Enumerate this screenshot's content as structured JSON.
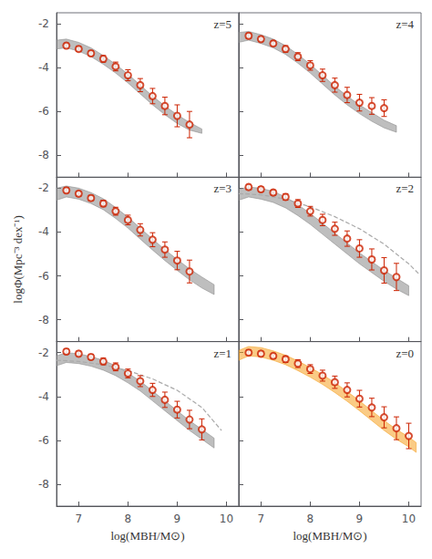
{
  "chart_data": [
    {
      "type": "scatter",
      "annotation": "z=5",
      "xlim": [
        6.55,
        10.25
      ],
      "ylim": [
        -9,
        -1.5
      ],
      "xticks": [
        7,
        8,
        9,
        10
      ],
      "yticks": [
        -8,
        -6,
        -4,
        -2
      ],
      "grid": false,
      "tick_labels": "y",
      "series": [
        {
          "type": "band",
          "color": "#888888",
          "x": [
            6.55,
            6.75,
            7.0,
            7.25,
            7.5,
            7.75,
            8.0,
            8.25,
            8.5,
            8.75,
            9.0,
            9.25,
            9.5
          ],
          "low": [
            -3.15,
            -3.1,
            -3.25,
            -3.5,
            -3.85,
            -4.25,
            -4.7,
            -5.2,
            -5.7,
            -6.15,
            -6.55,
            -6.85,
            -7.0
          ],
          "high": [
            -2.75,
            -2.7,
            -2.85,
            -3.1,
            -3.45,
            -3.85,
            -4.3,
            -4.8,
            -5.3,
            -5.75,
            -6.15,
            -6.5,
            -6.8
          ]
        },
        {
          "type": "scatter",
          "marker": "emptyCircle",
          "color": "#cc2200",
          "x": [
            6.75,
            7.0,
            7.25,
            7.5,
            7.75,
            8.0,
            8.25,
            8.5,
            8.75,
            9.0,
            9.25
          ],
          "values": [
            -3.0,
            -3.15,
            -3.35,
            -3.6,
            -3.95,
            -4.35,
            -4.8,
            -5.3,
            -5.75,
            -6.2,
            -6.6
          ],
          "yerr": [
            0.12,
            0.12,
            0.12,
            0.15,
            0.2,
            0.25,
            0.3,
            0.35,
            0.4,
            0.5,
            0.6
          ]
        }
      ]
    },
    {
      "type": "scatter",
      "annotation": "z=4",
      "xlim": [
        6.55,
        10.25
      ],
      "ylim": [
        -9,
        -1.5
      ],
      "xticks": [
        7,
        8,
        9,
        10
      ],
      "yticks": [
        -8,
        -6,
        -4,
        -2
      ],
      "grid": false,
      "tick_labels": false,
      "series": [
        {
          "type": "band",
          "color": "#888888",
          "x": [
            6.55,
            6.75,
            7.0,
            7.25,
            7.5,
            7.75,
            8.0,
            8.25,
            8.5,
            8.75,
            9.0,
            9.25,
            9.5,
            9.75
          ],
          "low": [
            -2.85,
            -2.75,
            -2.9,
            -3.1,
            -3.4,
            -3.8,
            -4.25,
            -4.75,
            -5.25,
            -5.7,
            -6.1,
            -6.45,
            -6.75,
            -6.95
          ],
          "high": [
            -2.4,
            -2.35,
            -2.5,
            -2.7,
            -3.0,
            -3.4,
            -3.85,
            -4.35,
            -4.85,
            -5.3,
            -5.7,
            -6.05,
            -6.4,
            -6.65
          ]
        },
        {
          "type": "scatter",
          "marker": "emptyCircle",
          "color": "#cc2200",
          "x": [
            6.75,
            7.0,
            7.25,
            7.5,
            7.75,
            8.0,
            8.25,
            8.5,
            8.75,
            9.0,
            9.25,
            9.5
          ],
          "values": [
            -2.55,
            -2.7,
            -2.9,
            -3.15,
            -3.5,
            -3.9,
            -4.35,
            -4.8,
            -5.25,
            -5.6,
            -5.75,
            -5.85
          ],
          "yerr": [
            0.12,
            0.12,
            0.12,
            0.15,
            0.18,
            0.22,
            0.28,
            0.32,
            0.35,
            0.38,
            0.38,
            0.38
          ]
        }
      ]
    },
    {
      "type": "scatter",
      "annotation": "z=3",
      "ylabel": "logΦ(Mpc⁻³ dex⁻¹)",
      "xlim": [
        6.55,
        10.25
      ],
      "ylim": [
        -9,
        -1.5
      ],
      "xticks": [
        7,
        8,
        9,
        10
      ],
      "yticks": [
        -8,
        -6,
        -4,
        -2
      ],
      "grid": false,
      "tick_labels": "y",
      "series": [
        {
          "type": "band",
          "color": "#888888",
          "x": [
            6.55,
            6.75,
            7.0,
            7.25,
            7.5,
            7.75,
            8.0,
            8.25,
            8.5,
            8.75,
            9.0,
            9.25,
            9.5,
            9.75
          ],
          "low": [
            -2.55,
            -2.4,
            -2.5,
            -2.7,
            -2.98,
            -3.38,
            -3.82,
            -4.32,
            -4.82,
            -5.3,
            -5.75,
            -6.18,
            -6.55,
            -6.85
          ],
          "high": [
            -2.0,
            -1.9,
            -2.0,
            -2.2,
            -2.48,
            -2.88,
            -3.32,
            -3.82,
            -4.32,
            -4.8,
            -5.25,
            -5.68,
            -6.05,
            -6.4
          ]
        },
        {
          "type": "scatter",
          "marker": "emptyCircle",
          "color": "#cc2200",
          "x": [
            6.75,
            7.0,
            7.25,
            7.5,
            7.75,
            8.0,
            8.25,
            8.5,
            8.75,
            9.0,
            9.25
          ],
          "values": [
            -2.1,
            -2.25,
            -2.45,
            -2.7,
            -3.05,
            -3.45,
            -3.9,
            -4.35,
            -4.8,
            -5.3,
            -5.8
          ],
          "yerr": [
            0.12,
            0.12,
            0.12,
            0.15,
            0.18,
            0.22,
            0.28,
            0.32,
            0.35,
            0.42,
            0.52
          ]
        }
      ]
    },
    {
      "type": "scatter",
      "annotation": "z=2",
      "xlim": [
        6.55,
        10.25
      ],
      "ylim": [
        -9,
        -1.5
      ],
      "xticks": [
        7,
        8,
        9,
        10
      ],
      "yticks": [
        -8,
        -6,
        -4,
        -2
      ],
      "grid": false,
      "tick_labels": false,
      "series": [
        {
          "type": "band",
          "color": "#888888",
          "x": [
            6.55,
            6.75,
            7.0,
            7.25,
            7.5,
            7.75,
            8.0,
            8.25,
            8.5,
            8.75,
            9.0,
            9.25,
            9.5,
            9.75,
            10.0
          ],
          "low": [
            -2.55,
            -2.4,
            -2.5,
            -2.65,
            -2.9,
            -3.25,
            -3.65,
            -4.1,
            -4.55,
            -5.0,
            -5.45,
            -5.85,
            -6.25,
            -6.6,
            -6.9
          ],
          "high": [
            -2.05,
            -1.95,
            -2.0,
            -2.15,
            -2.4,
            -2.75,
            -3.15,
            -3.6,
            -4.05,
            -4.5,
            -4.95,
            -5.35,
            -5.75,
            -6.1,
            -6.45
          ]
        },
        {
          "type": "line",
          "line_style": "dashed",
          "color": "#aaaaaa",
          "x": [
            6.55,
            7.0,
            7.5,
            8.0,
            8.5,
            9.0,
            9.5,
            10.0,
            10.2
          ],
          "values": [
            -2.25,
            -2.3,
            -2.5,
            -2.85,
            -3.3,
            -3.85,
            -4.55,
            -5.45,
            -5.9
          ]
        },
        {
          "type": "scatter",
          "marker": "emptyCircle",
          "color": "#cc2200",
          "x": [
            6.75,
            7.0,
            7.25,
            7.5,
            7.75,
            8.0,
            8.25,
            8.5,
            8.75,
            9.0,
            9.25,
            9.5,
            9.75
          ],
          "values": [
            -1.95,
            -2.05,
            -2.2,
            -2.4,
            -2.7,
            -3.05,
            -3.45,
            -3.85,
            -4.3,
            -4.75,
            -5.25,
            -5.75,
            -6.05
          ],
          "yerr": [
            0.12,
            0.12,
            0.12,
            0.15,
            0.18,
            0.22,
            0.26,
            0.3,
            0.35,
            0.4,
            0.48,
            0.58,
            0.62
          ]
        }
      ]
    },
    {
      "type": "scatter",
      "annotation": "z=1",
      "xlabel": "log(MBH/M⊙)",
      "xlim": [
        6.55,
        10.25
      ],
      "ylim": [
        -9,
        -1.5
      ],
      "xticks": [
        7,
        8,
        9,
        10
      ],
      "yticks": [
        -8,
        -6,
        -4,
        -2
      ],
      "grid": false,
      "tick_labels": true,
      "series": [
        {
          "type": "band",
          "color": "#888888",
          "x": [
            6.55,
            6.75,
            7.0,
            7.25,
            7.5,
            7.75,
            8.0,
            8.25,
            8.5,
            8.75,
            9.0,
            9.25,
            9.5,
            9.75
          ],
          "low": [
            -2.6,
            -2.45,
            -2.5,
            -2.62,
            -2.8,
            -3.05,
            -3.38,
            -3.75,
            -4.2,
            -4.65,
            -5.1,
            -5.55,
            -5.95,
            -6.35
          ],
          "high": [
            -2.15,
            -2.0,
            -2.05,
            -2.18,
            -2.35,
            -2.6,
            -2.93,
            -3.3,
            -3.75,
            -4.2,
            -4.65,
            -5.1,
            -5.5,
            -5.9
          ]
        },
        {
          "type": "line",
          "line_style": "dashed",
          "color": "#aaaaaa",
          "x": [
            6.55,
            7.0,
            7.5,
            8.0,
            8.5,
            9.0,
            9.5,
            9.9
          ],
          "values": [
            -2.35,
            -2.4,
            -2.55,
            -2.82,
            -3.2,
            -3.72,
            -4.5,
            -5.55
          ]
        },
        {
          "type": "scatter",
          "marker": "emptyCircle",
          "color": "#cc2200",
          "x": [
            6.75,
            7.0,
            7.25,
            7.5,
            7.75,
            8.0,
            8.25,
            8.5,
            8.75,
            9.0,
            9.25,
            9.5
          ],
          "values": [
            -1.95,
            -2.05,
            -2.2,
            -2.4,
            -2.65,
            -2.95,
            -3.3,
            -3.7,
            -4.15,
            -4.6,
            -5.05,
            -5.5
          ],
          "yerr": [
            0.12,
            0.12,
            0.12,
            0.15,
            0.18,
            0.2,
            0.25,
            0.3,
            0.35,
            0.38,
            0.42,
            0.48
          ]
        }
      ]
    },
    {
      "type": "scatter",
      "annotation": "z=0",
      "xlabel": "log(MBH/M⊙)",
      "xlim": [
        6.55,
        10.25
      ],
      "ylim": [
        -9,
        -1.5
      ],
      "xticks": [
        7,
        8,
        9,
        10
      ],
      "yticks": [
        -8,
        -6,
        -4,
        -2
      ],
      "grid": false,
      "tick_labels": "x",
      "series": [
        {
          "type": "band",
          "color": "#f5a020",
          "x": [
            6.55,
            6.75,
            7.0,
            7.25,
            7.5,
            7.75,
            8.0,
            8.25,
            8.5,
            8.75,
            9.0,
            9.25,
            9.5,
            9.75,
            10.0,
            10.15
          ],
          "low": [
            -2.35,
            -2.15,
            -2.2,
            -2.35,
            -2.55,
            -2.82,
            -3.12,
            -3.45,
            -3.82,
            -4.22,
            -4.65,
            -5.1,
            -5.55,
            -5.95,
            -6.3,
            -6.55
          ],
          "high": [
            -1.9,
            -1.72,
            -1.77,
            -1.92,
            -2.12,
            -2.38,
            -2.68,
            -3.0,
            -3.37,
            -3.77,
            -4.2,
            -4.65,
            -5.1,
            -5.5,
            -5.85,
            -6.1
          ]
        },
        {
          "type": "scatter",
          "marker": "emptyCircle",
          "color": "#cc2200",
          "x": [
            6.75,
            7.0,
            7.25,
            7.5,
            7.75,
            8.0,
            8.25,
            8.5,
            8.75,
            9.0,
            9.25,
            9.5,
            9.75,
            10.0
          ],
          "values": [
            -2.0,
            -2.05,
            -2.15,
            -2.3,
            -2.5,
            -2.75,
            -3.05,
            -3.35,
            -3.7,
            -4.1,
            -4.5,
            -4.95,
            -5.45,
            -5.8
          ],
          "yerr": [
            0.12,
            0.12,
            0.12,
            0.15,
            0.18,
            0.2,
            0.25,
            0.28,
            0.32,
            0.38,
            0.42,
            0.48,
            0.52,
            0.58
          ]
        }
      ]
    }
  ]
}
